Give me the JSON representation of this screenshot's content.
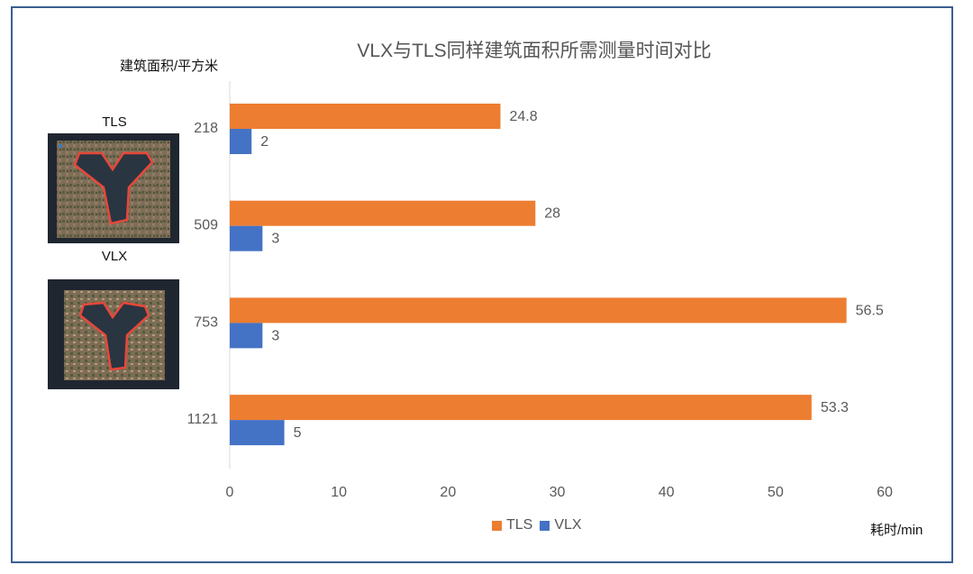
{
  "chart_data": {
    "type": "bar",
    "orientation": "horizontal",
    "title": "VLX与TLS同样建筑面积所需测量时间对比",
    "ylabel": "建筑面积/平方米",
    "xlabel": "耗时/min",
    "categories": [
      "218",
      "509",
      "753",
      "1121"
    ],
    "series": [
      {
        "name": "TLS",
        "color": "#ed7d31",
        "values": [
          24.8,
          28,
          56.5,
          53.3
        ]
      },
      {
        "name": "VLX",
        "color": "#4472c4",
        "values": [
          2,
          3,
          3,
          5
        ]
      }
    ],
    "xlim": [
      0,
      60
    ],
    "xticks": [
      "0",
      "10",
      "20",
      "30",
      "40",
      "50",
      "60"
    ],
    "grid": false,
    "legend": "bottom"
  },
  "images": {
    "tls_label": "TLS",
    "vlx_label": "VLX"
  },
  "colors": {
    "frame": "#3b5f8f",
    "thumb_bg": "#1f2630",
    "outline": "#e8473a"
  }
}
